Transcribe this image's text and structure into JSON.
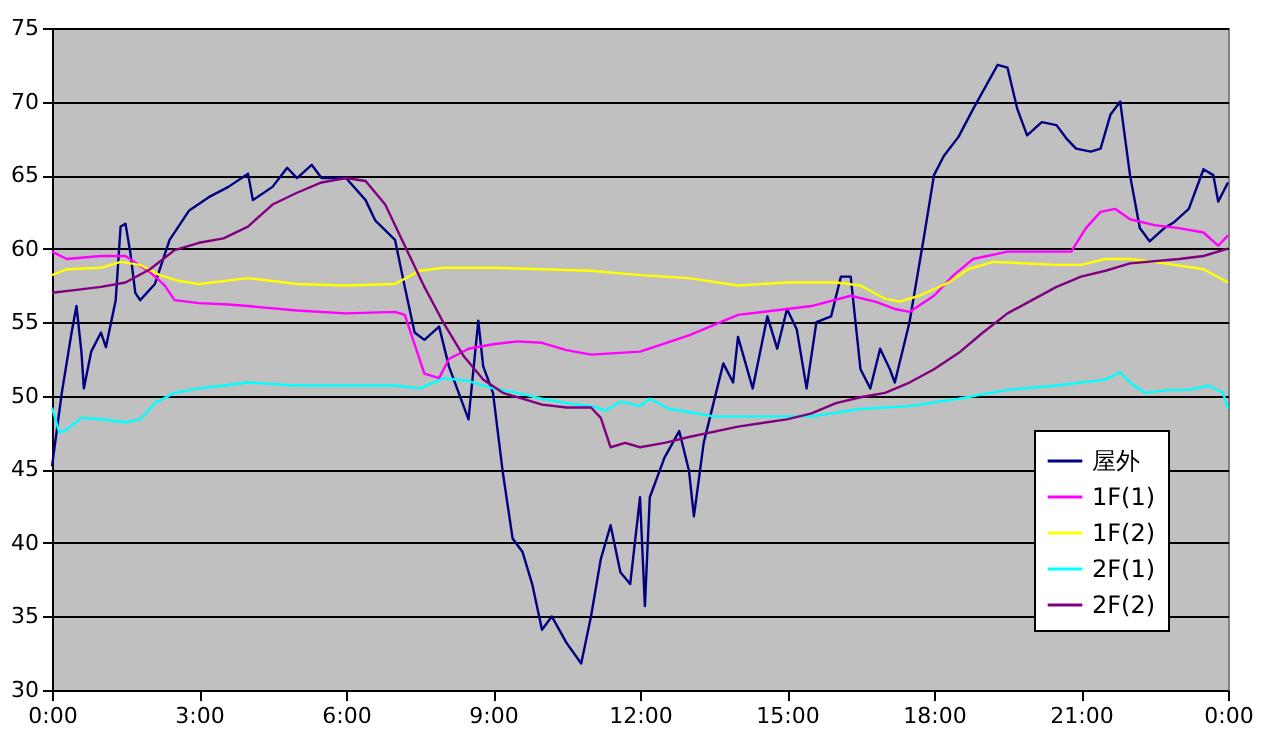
{
  "chart_data": {
    "type": "line",
    "legend": "bottom right",
    "grid": "y",
    "marker": "none",
    "line_style": "solid",
    "xlim": [
      0,
      24
    ],
    "xticks": [
      {
        "value": 0,
        "label": "0:00"
      },
      {
        "value": 3,
        "label": "3:00"
      },
      {
        "value": 6,
        "label": "6:00"
      },
      {
        "value": 9,
        "label": "9:00"
      },
      {
        "value": 12,
        "label": "12:00"
      },
      {
        "value": 15,
        "label": "15:00"
      },
      {
        "value": 18,
        "label": "18:00"
      },
      {
        "value": 21,
        "label": "21:00"
      },
      {
        "value": 24,
        "label": "0:00"
      }
    ],
    "ylim": [
      30,
      75
    ],
    "yticks": [
      30,
      35,
      40,
      45,
      50,
      55,
      60,
      65,
      70,
      75
    ],
    "series": [
      {
        "name": "屋外",
        "color": "#000080",
        "x": [
          0,
          0.2,
          0.4,
          0.5,
          0.6,
          0.65,
          0.8,
          1.0,
          1.1,
          1.3,
          1.4,
          1.5,
          1.6,
          1.7,
          1.8,
          2.1,
          2.4,
          2.8,
          3.2,
          3.6,
          4.0,
          4.1,
          4.5,
          4.8,
          5.0,
          5.3,
          5.5,
          6.0,
          6.4,
          6.6,
          7.0,
          7.2,
          7.4,
          7.6,
          7.9,
          8.1,
          8.3,
          8.5,
          8.7,
          8.8,
          9.0,
          9.2,
          9.4,
          9.6,
          9.8,
          10.0,
          10.2,
          10.5,
          10.8,
          11.0,
          11.2,
          11.4,
          11.6,
          11.8,
          12.0,
          12.1,
          12.2,
          12.5,
          12.8,
          13.0,
          13.1,
          13.3,
          13.5,
          13.7,
          13.9,
          14.0,
          14.3,
          14.6,
          14.8,
          15.0,
          15.2,
          15.4,
          15.6,
          15.9,
          16.1,
          16.3,
          16.5,
          16.7,
          16.9,
          17.1,
          17.2,
          17.5,
          17.8,
          18.0,
          18.2,
          18.5,
          18.8,
          19.1,
          19.3,
          19.5,
          19.7,
          19.9,
          20.2,
          20.5,
          20.7,
          20.9,
          21.2,
          21.4,
          21.6,
          21.8,
          22.0,
          22.2,
          22.4,
          22.7,
          22.9,
          23.2,
          23.5,
          23.7,
          23.8,
          24.0
        ],
        "values": [
          45.2,
          50.2,
          54.3,
          56.1,
          53,
          50.5,
          53,
          54.3,
          53.3,
          56.5,
          61.5,
          61.7,
          59.7,
          57,
          56.5,
          57.6,
          60.6,
          62.6,
          63.5,
          64.2,
          65.1,
          63.3,
          64.2,
          65.5,
          64.8,
          65.7,
          64.8,
          64.8,
          63.3,
          61.9,
          60.6,
          57.4,
          54.3,
          53.8,
          54.7,
          52,
          50.2,
          48.4,
          55.1,
          52,
          50.2,
          44.8,
          40.3,
          39.4,
          37.2,
          34.1,
          35,
          33.2,
          31.8,
          35,
          38.9,
          41.2,
          38,
          37.2,
          43.1,
          35.7,
          43.1,
          45.8,
          47.6,
          44.9,
          41.8,
          46.8,
          49.5,
          52.2,
          50.9,
          54,
          50.5,
          55.4,
          53.2,
          55.9,
          54.5,
          50.5,
          55,
          55.4,
          58.1,
          58.1,
          51.8,
          50.5,
          53.2,
          51.8,
          50.9,
          55,
          60.9,
          65,
          66.3,
          67.6,
          69.5,
          71.3,
          72.5,
          72.3,
          69.5,
          67.7,
          68.6,
          68.4,
          67.5,
          66.8,
          66.6,
          66.8,
          69.1,
          70,
          65,
          61.4,
          60.5,
          61.4,
          61.8,
          62.7,
          65.4,
          65,
          63.2,
          64.5
        ]
      },
      {
        "name": "1F(1)",
        "color": "#ff00ff",
        "x": [
          0,
          0.3,
          1.0,
          1.5,
          2.0,
          2.3,
          2.5,
          3.0,
          3.6,
          4.0,
          5.0,
          6.0,
          7.0,
          7.2,
          7.4,
          7.6,
          7.9,
          8.1,
          8.5,
          9.0,
          9.5,
          10.0,
          10.5,
          11.0,
          11.5,
          12.0,
          13.0,
          14.0,
          15.0,
          15.5,
          16.3,
          16.8,
          17.2,
          17.5,
          18.0,
          18.4,
          18.8,
          19.5,
          20.5,
          20.8,
          21.1,
          21.4,
          21.7,
          22.0,
          22.5,
          23.0,
          23.5,
          23.8,
          24.0
        ],
        "values": [
          59.8,
          59.3,
          59.5,
          59.5,
          58.4,
          57.5,
          56.5,
          56.3,
          56.2,
          56.1,
          55.8,
          55.6,
          55.7,
          55.5,
          53.5,
          51.5,
          51.2,
          52.5,
          53.2,
          53.5,
          53.7,
          53.6,
          53.1,
          52.8,
          52.9,
          53,
          54.1,
          55.5,
          55.9,
          56.1,
          56.8,
          56.4,
          55.9,
          55.7,
          56.8,
          58.2,
          59.3,
          59.8,
          59.8,
          59.8,
          61.4,
          62.5,
          62.7,
          62,
          61.6,
          61.4,
          61.1,
          60.2,
          60.9
        ]
      },
      {
        "name": "1F(2)",
        "color": "#ffff00",
        "x": [
          0,
          0.3,
          1.0,
          1.4,
          1.8,
          2.2,
          2.6,
          3.0,
          4.0,
          4.5,
          5.0,
          6.0,
          7.0,
          7.5,
          8.0,
          9.0,
          10.0,
          11.0,
          12.0,
          13.0,
          14.0,
          15.0,
          16.0,
          16.5,
          17.0,
          17.3,
          17.7,
          18.3,
          18.7,
          19.2,
          20.5,
          21.0,
          21.5,
          22.0,
          22.5,
          23.5,
          24.0
        ],
        "values": [
          58.2,
          58.6,
          58.7,
          59.1,
          58.9,
          58.2,
          57.8,
          57.6,
          58,
          57.8,
          57.6,
          57.5,
          57.6,
          58.5,
          58.7,
          58.7,
          58.6,
          58.5,
          58.2,
          58,
          57.5,
          57.7,
          57.7,
          57.5,
          56.6,
          56.4,
          56.8,
          57.7,
          58.6,
          59.1,
          58.9,
          58.9,
          59.3,
          59.3,
          59.1,
          58.6,
          57.7
        ]
      },
      {
        "name": "2F(1)",
        "color": "#00ffff",
        "x": [
          0,
          0.15,
          0.3,
          0.6,
          1.0,
          1.5,
          1.8,
          2.1,
          2.5,
          3.0,
          3.5,
          4.0,
          5.0,
          6.0,
          7.0,
          7.5,
          8.0,
          8.5,
          9.0,
          9.5,
          10.0,
          10.5,
          11.0,
          11.3,
          11.6,
          12.0,
          12.2,
          12.6,
          13.0,
          13.5,
          14.5,
          15.5,
          16.5,
          17.5,
          18.5,
          19.5,
          20.5,
          21.5,
          21.8,
          22.0,
          22.3,
          22.8,
          23.2,
          23.6,
          23.9,
          24.0
        ],
        "values": [
          49.2,
          47.5,
          47.7,
          48.5,
          48.4,
          48.2,
          48.4,
          49.5,
          50.2,
          50.5,
          50.7,
          50.9,
          50.7,
          50.7,
          50.7,
          50.5,
          51.2,
          51,
          50.5,
          50.2,
          49.8,
          49.5,
          49.3,
          49,
          49.6,
          49.3,
          49.8,
          49.1,
          48.9,
          48.6,
          48.6,
          48.6,
          49.1,
          49.3,
          49.8,
          50.4,
          50.7,
          51.1,
          51.6,
          50.9,
          50.2,
          50.4,
          50.4,
          50.7,
          50.2,
          49.1
        ]
      },
      {
        "name": "2F(2)",
        "color": "#800080",
        "x": [
          0,
          0.5,
          1.0,
          1.5,
          2.0,
          2.5,
          3.0,
          3.5,
          4.0,
          4.5,
          5.0,
          5.5,
          6.0,
          6.4,
          6.8,
          7.2,
          7.6,
          8.0,
          8.4,
          8.8,
          9.2,
          9.6,
          10.0,
          10.5,
          11.0,
          11.2,
          11.4,
          11.7,
          12.0,
          12.5,
          13.0,
          14.0,
          15.0,
          15.5,
          16.0,
          16.5,
          17.0,
          17.5,
          18.0,
          18.5,
          19.0,
          19.5,
          20.0,
          20.5,
          21.0,
          21.5,
          22.0,
          23.0,
          23.5,
          24.0
        ],
        "values": [
          57,
          57.2,
          57.4,
          57.7,
          58.6,
          59.9,
          60.4,
          60.7,
          61.5,
          63,
          63.8,
          64.5,
          64.8,
          64.6,
          63,
          60.2,
          57.4,
          54.9,
          52.7,
          51.1,
          50.2,
          49.8,
          49.4,
          49.2,
          49.2,
          48.5,
          46.5,
          46.8,
          46.5,
          46.8,
          47.2,
          47.9,
          48.4,
          48.8,
          49.5,
          49.9,
          50.2,
          50.9,
          51.8,
          52.9,
          54.3,
          55.6,
          56.5,
          57.4,
          58.1,
          58.5,
          59,
          59.3,
          59.5,
          60
        ]
      }
    ]
  }
}
